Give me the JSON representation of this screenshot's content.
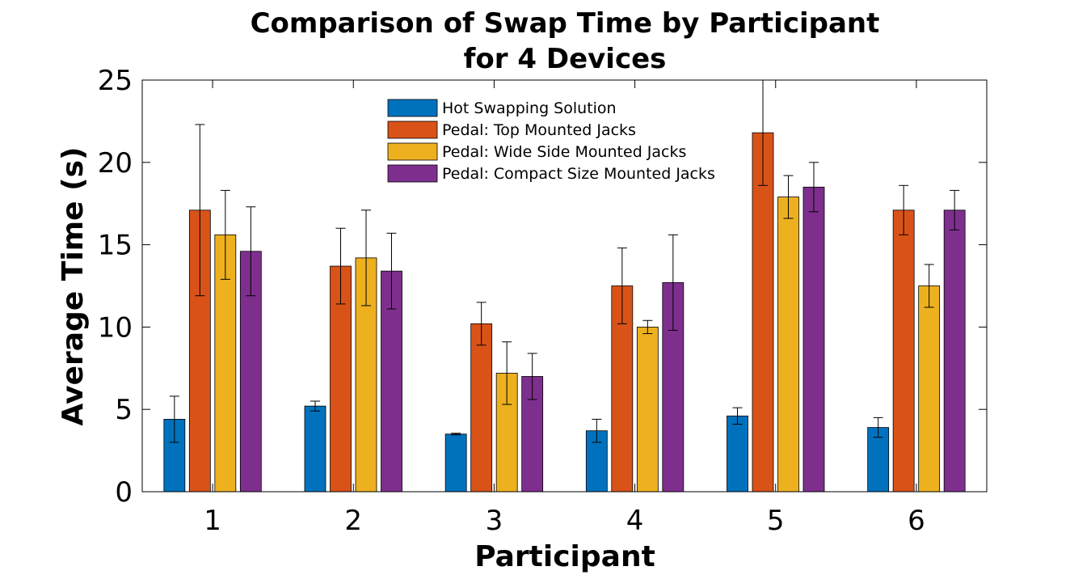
{
  "chart_data": {
    "type": "bar",
    "title": [
      "Comparison of Swap Time by Participant",
      "for 4 Devices"
    ],
    "xlabel": "Participant",
    "ylabel": "Average Time (s)",
    "categories": [
      "1",
      "2",
      "3",
      "4",
      "5",
      "6"
    ],
    "ylim": [
      0,
      25
    ],
    "yticks": [
      "0",
      "5",
      "10",
      "15",
      "20",
      "25"
    ],
    "grid": false,
    "legend_position": "top-center",
    "series": [
      {
        "name": "Hot Swapping Solution",
        "color": "#0072BD",
        "values": [
          4.4,
          5.2,
          3.5,
          3.7,
          4.6,
          3.9
        ],
        "error": [
          1.4,
          0.3,
          0.05,
          0.7,
          0.5,
          0.6
        ]
      },
      {
        "name": "Pedal: Top Mounted Jacks",
        "color": "#D95319",
        "values": [
          17.1,
          13.7,
          10.2,
          12.5,
          21.8,
          17.1
        ],
        "error": [
          5.2,
          2.3,
          1.3,
          2.3,
          3.2,
          1.5
        ]
      },
      {
        "name": "Pedal: Wide Side Mounted Jacks",
        "color": "#EDB120",
        "values": [
          15.6,
          14.2,
          7.2,
          10.0,
          17.9,
          12.5
        ],
        "error": [
          2.7,
          2.9,
          1.9,
          0.4,
          1.3,
          1.3
        ]
      },
      {
        "name": "Pedal: Compact Size Mounted Jacks",
        "color": "#7E2F8E",
        "values": [
          14.6,
          13.4,
          7.0,
          12.7,
          18.5,
          17.1
        ],
        "error": [
          2.7,
          2.3,
          1.4,
          2.9,
          1.5,
          1.2
        ]
      }
    ]
  }
}
